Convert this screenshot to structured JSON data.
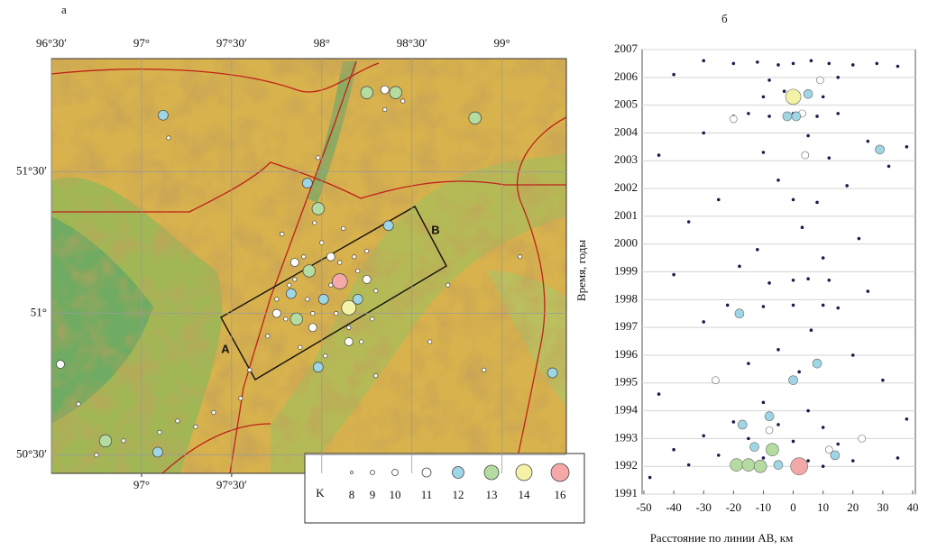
{
  "chart_data": [
    {
      "type": "map",
      "panel": "а",
      "xlim": [
        96.5,
        99.357
      ],
      "ylim": [
        50.435,
        51.9
      ],
      "xticks": [
        {
          "value": 96.5,
          "label": "96°30′"
        },
        {
          "value": 97,
          "label": "97°"
        },
        {
          "value": 97.5,
          "label": "97°30′"
        },
        {
          "value": 98,
          "label": "98°"
        },
        {
          "value": 98.5,
          "label": "98°30′"
        },
        {
          "value": 99,
          "label": "99°"
        }
      ],
      "xticks_bottom": [
        {
          "value": 97,
          "label": "97°"
        },
        {
          "value": 97.5,
          "label": "97°30′"
        }
      ],
      "yticks": [
        {
          "value": 51.5,
          "label": "51°30′"
        },
        {
          "value": 51,
          "label": "51°"
        },
        {
          "value": 50.5,
          "label": "50°30′"
        }
      ],
      "profile_labels": [
        "A",
        "B"
      ],
      "legend_title": "K",
      "classes": [
        8,
        9,
        10,
        11,
        12,
        13,
        14,
        16
      ],
      "class_colors": [
        "#ffffff",
        "#ffffff",
        "#ffffff",
        "#ffffff",
        "#9fd6e6",
        "#b5dca0",
        "#f3f2a6",
        "#f4a8a8"
      ],
      "series": [
        {
          "color": "#ffffff",
          "x": [
            97.75,
            97.8,
            97.85,
            97.9,
            97.95,
            98.0,
            98.05,
            98.1,
            98.15,
            98.2,
            98.25,
            98.3,
            97.7,
            97.78,
            97.88,
            97.96,
            98.02,
            98.12,
            98.22,
            97.82,
            97.92,
            98.08,
            98.18,
            98.28,
            97.6,
            97.55,
            97.4,
            97.3,
            97.2,
            97.1,
            96.9,
            96.75,
            96.65,
            98.6,
            98.7,
            98.9,
            99.1,
            97.15,
            98.35,
            98.45,
            97.98,
            98.3
          ],
          "y": [
            51.05,
            50.98,
            51.12,
            51.2,
            51.0,
            51.25,
            51.1,
            51.18,
            50.95,
            51.15,
            51.22,
            51.08,
            50.92,
            51.28,
            50.88,
            51.32,
            50.85,
            51.3,
            50.9,
            51.1,
            51.05,
            51.0,
            51.2,
            50.98,
            50.8,
            50.7,
            50.65,
            50.6,
            50.62,
            50.58,
            50.55,
            50.5,
            50.68,
            50.9,
            51.1,
            50.8,
            51.2,
            51.62,
            51.72,
            51.75,
            51.55,
            50.78
          ]
        },
        {
          "color": "#ffffff",
          "x": [
            97.85,
            98.05,
            97.95,
            98.15,
            97.75,
            98.25,
            96.55,
            98.35
          ],
          "y": [
            51.18,
            51.2,
            50.95,
            50.9,
            51.0,
            51.12,
            50.82,
            51.79
          ]
        },
        {
          "color": "#9fd6e6",
          "x": [
            97.12,
            97.92,
            97.83,
            98.01,
            98.2,
            97.98,
            99.28,
            97.09,
            98.37
          ],
          "y": [
            51.7,
            51.46,
            51.07,
            51.05,
            51.05,
            50.81,
            50.79,
            50.51,
            51.31
          ]
        },
        {
          "color": "#b5dca0",
          "x": [
            98.25,
            98.41,
            98.85,
            97.98,
            97.93,
            97.86,
            96.8
          ],
          "y": [
            51.78,
            51.78,
            51.69,
            51.37,
            51.15,
            50.98,
            50.55
          ]
        },
        {
          "color": "#f3f2a6",
          "x": [
            98.15
          ],
          "y": [
            51.02
          ]
        },
        {
          "color": "#f4a8a8",
          "x": [
            98.1
          ],
          "y": [
            51.113
          ]
        }
      ]
    },
    {
      "type": "scatter",
      "panel": "б",
      "x_label": "Расстояние по линии AB, км",
      "y_label": "Время, годы",
      "xlim": [
        -50,
        40
      ],
      "ylim": [
        1991,
        2007
      ],
      "xticks": [
        -50,
        -40,
        -30,
        -20,
        -10,
        0,
        10,
        20,
        30,
        40
      ],
      "yticks": [
        1991,
        1992,
        1993,
        1994,
        1995,
        1996,
        1997,
        1998,
        1999,
        2000,
        2001,
        2002,
        2003,
        2004,
        2005,
        2006,
        2007
      ],
      "series": [
        {
          "color": "#1b1e4a",
          "x": [
            -20,
            -12,
            -5,
            0,
            6,
            12,
            20,
            28,
            -30,
            35,
            -40,
            15,
            -8,
            -10,
            -3,
            4,
            10,
            -20,
            -15,
            -8,
            0,
            8,
            15,
            -30,
            5,
            25,
            38,
            -45,
            -10,
            12,
            32,
            -5,
            18,
            -25,
            0,
            8,
            -35,
            3,
            22,
            -12,
            10,
            -18,
            -40,
            0,
            5,
            12,
            -8,
            25,
            -22,
            -10,
            0,
            10,
            15,
            -30,
            6,
            -5,
            20,
            -15,
            2,
            30,
            -45,
            -10,
            5,
            -20,
            -5,
            10,
            -30,
            -15,
            0,
            15,
            -40,
            -25,
            -10,
            5,
            20,
            -35,
            -20,
            -5,
            10,
            35,
            -48,
            38
          ],
          "y": [
            2006.5,
            2006.55,
            2006.45,
            2006.5,
            2006.6,
            2006.5,
            2006.45,
            2006.5,
            2006.6,
            2006.4,
            2006.1,
            2006.0,
            2005.9,
            2005.3,
            2005.5,
            2005.4,
            2005.3,
            2004.6,
            2004.7,
            2004.6,
            2004.7,
            2004.6,
            2004.7,
            2004.0,
            2003.9,
            2003.7,
            2003.5,
            2003.2,
            2003.3,
            2003.1,
            2002.8,
            2002.3,
            2002.1,
            2001.6,
            2001.6,
            2001.5,
            2000.8,
            2000.6,
            2000.2,
            1999.8,
            1999.5,
            1999.2,
            1998.9,
            1998.7,
            1998.75,
            1998.7,
            1998.6,
            1998.3,
            1997.8,
            1997.75,
            1997.8,
            1997.8,
            1997.7,
            1997.2,
            1996.9,
            1996.2,
            1996.0,
            1995.7,
            1995.4,
            1995.1,
            1994.6,
            1994.3,
            1994.0,
            1993.6,
            1993.5,
            1993.4,
            1993.1,
            1993.0,
            1992.9,
            1992.8,
            1992.6,
            1992.4,
            1992.3,
            1992.2,
            1992.2,
            1992.05,
            1992.0,
            1992.05,
            1992.0,
            1992.3,
            1991.6,
            1993.7
          ]
        },
        {
          "color": "#ffffff",
          "x": [
            3,
            -20,
            4,
            -26,
            23,
            12,
            9,
            -8
          ],
          "y": [
            2004.7,
            2004.5,
            2003.2,
            1995.1,
            1993.0,
            1992.6,
            2005.9,
            1993.3
          ]
        },
        {
          "color": "#9fd6e6",
          "x": [
            5,
            -2,
            1,
            29,
            -18,
            -17,
            -13,
            -5,
            0,
            8,
            -8,
            14
          ],
          "y": [
            2005.4,
            2004.6,
            2004.6,
            2003.4,
            1997.5,
            1993.5,
            1992.7,
            1992.05,
            1995.1,
            1995.7,
            1993.8,
            1992.4
          ]
        },
        {
          "color": "#b5dca0",
          "x": [
            -19,
            -15,
            -11,
            -7
          ],
          "y": [
            1992.05,
            1992.05,
            1992.0,
            1992.6
          ]
        },
        {
          "color": "#f3f2a6",
          "x": [
            0
          ],
          "y": [
            2005.3
          ]
        },
        {
          "color": "#f4a8a8",
          "x": [
            2
          ],
          "y": [
            1992.0
          ]
        }
      ]
    }
  ]
}
